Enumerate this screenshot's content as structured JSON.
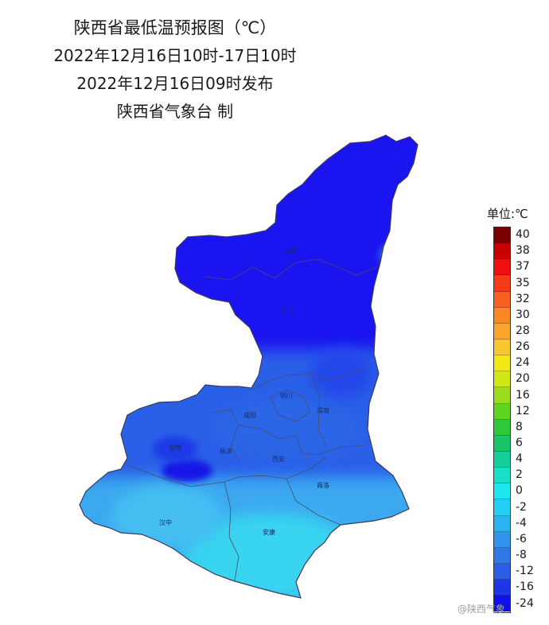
{
  "title": {
    "line1": "陕西省最低温预报图（℃）",
    "line2": "2022年12月16日10时-17日10时",
    "line3": "2022年12月16日09时发布",
    "line4": "陕西省气象台 制"
  },
  "map": {
    "cities": [
      {
        "name": "榆林"
      },
      {
        "name": "延安"
      },
      {
        "name": "铜川"
      },
      {
        "name": "渭南"
      },
      {
        "name": "咸阳"
      },
      {
        "name": "宝鸡"
      },
      {
        "name": "杨凌"
      },
      {
        "name": "西安"
      },
      {
        "name": "商洛"
      },
      {
        "name": "汉中"
      },
      {
        "name": "安康"
      }
    ],
    "colors": {
      "north": "#1a14f0",
      "central": "#2060e6",
      "south": "#3fb0f0",
      "southeast": "#38d6f0",
      "boundary": "#4a4a6a"
    }
  },
  "legend": {
    "unit": "单位:℃",
    "items": [
      {
        "label": "40",
        "color": "#7a0000"
      },
      {
        "label": "38",
        "color": "#c80000"
      },
      {
        "label": "37",
        "color": "#f01010"
      },
      {
        "label": "35",
        "color": "#f53a1a"
      },
      {
        "label": "32",
        "color": "#f76220"
      },
      {
        "label": "30",
        "color": "#f88826"
      },
      {
        "label": "28",
        "color": "#f9a42c"
      },
      {
        "label": "26",
        "color": "#f8c830"
      },
      {
        "label": "24",
        "color": "#f2e614"
      },
      {
        "label": "20",
        "color": "#cfe816"
      },
      {
        "label": "16",
        "color": "#9cdc1c"
      },
      {
        "label": "12",
        "color": "#5ed420"
      },
      {
        "label": "8",
        "color": "#2ec838"
      },
      {
        "label": "6",
        "color": "#1ac56a"
      },
      {
        "label": "4",
        "color": "#16d09c"
      },
      {
        "label": "2",
        "color": "#18e0c8"
      },
      {
        "label": "0",
        "color": "#1ce6ee"
      },
      {
        "label": "-2",
        "color": "#22cef3"
      },
      {
        "label": "-4",
        "color": "#2ab2f2"
      },
      {
        "label": "-6",
        "color": "#3194ee"
      },
      {
        "label": "-8",
        "color": "#3278e9"
      },
      {
        "label": "-12",
        "color": "#2c5ce6"
      },
      {
        "label": "-16",
        "color": "#1e36e8"
      },
      {
        "label": "-24",
        "color": "#1010ee"
      }
    ]
  },
  "watermark": "@陕西气象"
}
